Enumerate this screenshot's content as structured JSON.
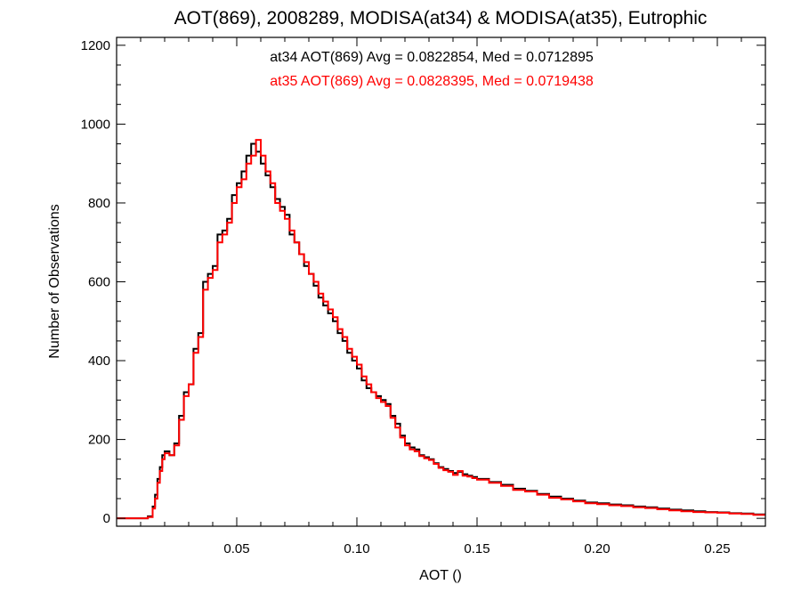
{
  "chart_data": {
    "type": "line",
    "drawstyle": "steps",
    "title": "AOT(869), 2008289, MODISA(at34) & MODISA(at35), Eutrophic",
    "xlabel": "AOT ()",
    "ylabel": "Number of Observations",
    "xlim": [
      0.0,
      0.27
    ],
    "ylim": [
      -20,
      1220
    ],
    "xticks": [
      0.05,
      0.1,
      0.15,
      0.2,
      0.25
    ],
    "xtick_labels": [
      "0.05",
      "0.10",
      "0.15",
      "0.20",
      "0.25"
    ],
    "yticks": [
      0,
      200,
      400,
      600,
      800,
      1000,
      1200
    ],
    "ytick_labels": [
      "0",
      "200",
      "400",
      "600",
      "800",
      "1000",
      "1200"
    ],
    "grid": false,
    "annotations": [
      {
        "text": "at34 AOT(869) Avg = 0.0822854, Med = 0.0712895",
        "color": "#000000"
      },
      {
        "text": "at35 AOT(869) Avg = 0.0828395, Med = 0.0719438",
        "color": "#ff0000"
      }
    ],
    "series": [
      {
        "id": "at34",
        "color": "#000000",
        "x": [
          0.0,
          0.01,
          0.013,
          0.015,
          0.016,
          0.017,
          0.018,
          0.019,
          0.02,
          0.022,
          0.024,
          0.026,
          0.028,
          0.03,
          0.032,
          0.034,
          0.036,
          0.038,
          0.04,
          0.042,
          0.044,
          0.046,
          0.048,
          0.05,
          0.052,
          0.054,
          0.056,
          0.058,
          0.06,
          0.062,
          0.064,
          0.066,
          0.068,
          0.07,
          0.072,
          0.074,
          0.076,
          0.078,
          0.08,
          0.082,
          0.084,
          0.086,
          0.088,
          0.09,
          0.092,
          0.094,
          0.096,
          0.098,
          0.1,
          0.102,
          0.104,
          0.106,
          0.108,
          0.11,
          0.112,
          0.114,
          0.116,
          0.118,
          0.12,
          0.122,
          0.124,
          0.126,
          0.128,
          0.13,
          0.132,
          0.134,
          0.136,
          0.138,
          0.14,
          0.142,
          0.144,
          0.146,
          0.148,
          0.15,
          0.155,
          0.16,
          0.165,
          0.17,
          0.175,
          0.18,
          0.185,
          0.19,
          0.195,
          0.2,
          0.205,
          0.21,
          0.215,
          0.22,
          0.225,
          0.23,
          0.235,
          0.24,
          0.245,
          0.25,
          0.255,
          0.26,
          0.265,
          0.27
        ],
        "y": [
          0,
          0,
          5,
          30,
          60,
          100,
          130,
          160,
          170,
          160,
          190,
          260,
          320,
          340,
          430,
          470,
          600,
          620,
          640,
          720,
          730,
          760,
          820,
          850,
          880,
          920,
          950,
          930,
          900,
          870,
          840,
          810,
          790,
          770,
          720,
          700,
          670,
          640,
          620,
          590,
          560,
          540,
          520,
          500,
          470,
          450,
          420,
          400,
          380,
          350,
          330,
          320,
          310,
          300,
          290,
          260,
          240,
          210,
          190,
          180,
          175,
          160,
          155,
          150,
          140,
          130,
          125,
          120,
          115,
          118,
          112,
          108,
          105,
          100,
          92,
          85,
          75,
          70,
          62,
          55,
          50,
          45,
          40,
          38,
          35,
          33,
          30,
          28,
          25,
          22,
          20,
          18,
          16,
          15,
          13,
          12,
          10,
          9
        ]
      },
      {
        "id": "at35",
        "color": "#ff0000",
        "x": [
          0.0,
          0.01,
          0.013,
          0.015,
          0.016,
          0.017,
          0.018,
          0.019,
          0.02,
          0.022,
          0.024,
          0.026,
          0.028,
          0.03,
          0.032,
          0.034,
          0.036,
          0.038,
          0.04,
          0.042,
          0.044,
          0.046,
          0.048,
          0.05,
          0.052,
          0.054,
          0.056,
          0.058,
          0.06,
          0.062,
          0.064,
          0.066,
          0.068,
          0.07,
          0.072,
          0.074,
          0.076,
          0.078,
          0.08,
          0.082,
          0.084,
          0.086,
          0.088,
          0.09,
          0.092,
          0.094,
          0.096,
          0.098,
          0.1,
          0.102,
          0.104,
          0.106,
          0.108,
          0.11,
          0.112,
          0.114,
          0.116,
          0.118,
          0.12,
          0.122,
          0.124,
          0.126,
          0.128,
          0.13,
          0.132,
          0.134,
          0.136,
          0.138,
          0.14,
          0.142,
          0.144,
          0.146,
          0.148,
          0.15,
          0.155,
          0.16,
          0.165,
          0.17,
          0.175,
          0.18,
          0.185,
          0.19,
          0.195,
          0.2,
          0.205,
          0.21,
          0.215,
          0.22,
          0.225,
          0.23,
          0.235,
          0.24,
          0.245,
          0.25,
          0.255,
          0.26,
          0.265,
          0.27
        ],
        "y": [
          0,
          0,
          3,
          25,
          50,
          90,
          120,
          150,
          165,
          160,
          185,
          250,
          310,
          340,
          420,
          460,
          580,
          610,
          630,
          700,
          720,
          750,
          800,
          840,
          860,
          900,
          920,
          960,
          920,
          880,
          850,
          800,
          780,
          760,
          730,
          700,
          670,
          650,
          620,
          600,
          570,
          550,
          530,
          510,
          480,
          460,
          430,
          410,
          390,
          360,
          340,
          320,
          305,
          295,
          285,
          255,
          230,
          205,
          185,
          175,
          170,
          158,
          152,
          148,
          138,
          128,
          122,
          118,
          110,
          120,
          108,
          106,
          102,
          98,
          90,
          82,
          72,
          68,
          60,
          52,
          48,
          43,
          38,
          36,
          33,
          31,
          28,
          26,
          23,
          20,
          18,
          16,
          15,
          14,
          12,
          11,
          9,
          8
        ]
      }
    ]
  }
}
